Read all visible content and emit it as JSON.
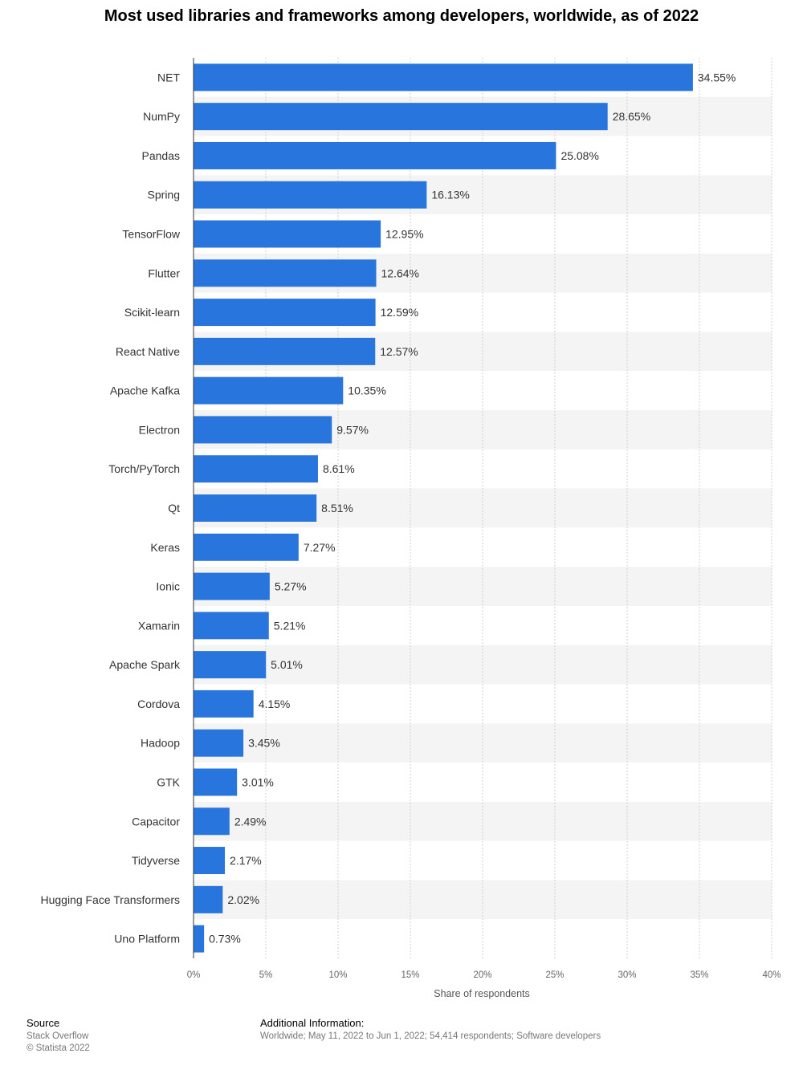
{
  "chart_data": {
    "type": "bar",
    "orientation": "horizontal",
    "title": "Most used libraries and frameworks among developers, worldwide, as of 2022",
    "xlabel": "Share of respondents",
    "ylabel": "",
    "xlim": [
      0,
      40
    ],
    "x_ticks": [
      "0%",
      "5%",
      "10%",
      "15%",
      "20%",
      "25%",
      "30%",
      "35%",
      "40%"
    ],
    "grid": true,
    "bar_color": "#2876dd",
    "categories": [
      "NET",
      "NumPy",
      "Pandas",
      "Spring",
      "TensorFlow",
      "Flutter",
      "Scikit-learn",
      "React Native",
      "Apache Kafka",
      "Electron",
      "Torch/PyTorch",
      "Qt",
      "Keras",
      "Ionic",
      "Xamarin",
      "Apache Spark",
      "Cordova",
      "Hadoop",
      "GTK",
      "Capacitor",
      "Tidyverse",
      "Hugging Face Transformers",
      "Uno Platform"
    ],
    "values": [
      34.55,
      28.65,
      25.08,
      16.13,
      12.95,
      12.64,
      12.59,
      12.57,
      10.35,
      9.57,
      8.61,
      8.51,
      7.27,
      5.27,
      5.21,
      5.01,
      4.15,
      3.45,
      3.01,
      2.49,
      2.17,
      2.02,
      0.73
    ],
    "value_labels": [
      "34.55%",
      "28.65%",
      "25.08%",
      "16.13%",
      "12.95%",
      "12.64%",
      "12.59%",
      "12.57%",
      "10.35%",
      "9.57%",
      "8.61%",
      "8.51%",
      "7.27%",
      "5.27%",
      "5.21%",
      "5.01%",
      "4.15%",
      "3.45%",
      "3.01%",
      "2.49%",
      "2.17%",
      "2.02%",
      "0.73%"
    ]
  },
  "footer": {
    "source_heading": "Source",
    "source_name": "Stack Overflow",
    "copyright": "© Statista 2022",
    "info_heading": "Additional Information:",
    "info_text": "Worldwide; May 11, 2022 to Jun 1, 2022; 54,414 respondents; Software developers"
  }
}
